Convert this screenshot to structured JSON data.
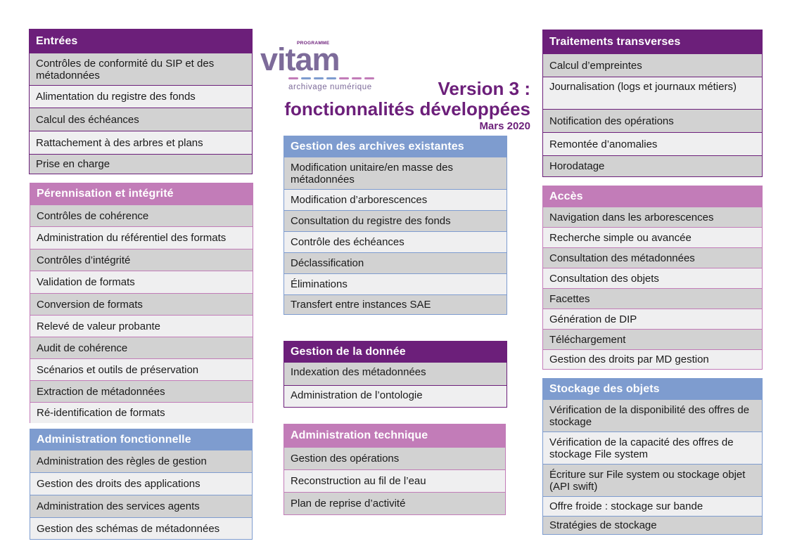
{
  "title": {
    "line1": "Version 3 :",
    "line2": "fonctionnalités développées",
    "date": "Mars 2020"
  },
  "logo": {
    "program": "PROGRAMME",
    "word": "vitam",
    "tagline": "archivage numérique"
  },
  "colors": {
    "purple": "#6c1f7a",
    "pink": "#c27cb8",
    "blue": "#7e9ccf",
    "row_grey": "#d2d2d2",
    "row_light": "#efeff0"
  },
  "entrees": {
    "title": "Entrées",
    "items": [
      "Contrôles de conformité du SIP et des métadonnées",
      "Alimentation du registre des fonds",
      "Calcul des échéances",
      "Rattachement à des arbres et plans",
      "Prise en charge"
    ]
  },
  "perennisation": {
    "title": "Pérennisation et intégrité",
    "items": [
      "Contrôles de cohérence",
      "Administration du référentiel des formats",
      "Contrôles d’intégrité",
      "Validation de formats",
      "Conversion de formats",
      "Relevé de valeur probante",
      "Audit de cohérence",
      "Scénarios et outils de préservation",
      "Extraction de métadonnées",
      "Ré-identification de formats"
    ]
  },
  "admin_fonctionnelle": {
    "title": "Administration fonctionnelle",
    "items": [
      "Administration des règles de gestion",
      "Gestion des droits des applications",
      "Administration des services agents",
      "Gestion des schémas de métadonnées"
    ]
  },
  "gestion_archives": {
    "title": "Gestion des archives existantes",
    "items": [
      "Modification unitaire/en masse des métadonnées",
      "Modification d’arborescences",
      "Consultation du registre des fonds",
      "Contrôle des échéances",
      "Déclassification",
      "Éliminations",
      "Transfert entre instances SAE"
    ]
  },
  "gestion_donnee": {
    "title": "Gestion de la donnée",
    "items": [
      "Indexation des métadonnées",
      "Administration de l’ontologie"
    ]
  },
  "admin_technique": {
    "title": "Administration technique",
    "items": [
      "Gestion des opérations",
      "Reconstruction au fil de l’eau",
      "Plan de reprise d’activité"
    ]
  },
  "traitements": {
    "title": "Traitements transverses",
    "items": [
      "Calcul d’empreintes",
      "Journalisation (logs et journaux métiers)",
      "Notification des opérations",
      "Remontée d’anomalies",
      "Horodatage"
    ]
  },
  "acces": {
    "title": "Accès",
    "items": [
      "Navigation dans les arborescences",
      "Recherche simple ou avancée",
      "Consultation des métadonnées",
      "Consultation des objets",
      "Facettes",
      "Génération de DIP",
      "Téléchargement",
      "Gestion des droits par MD gestion"
    ]
  },
  "stockage": {
    "title": "Stockage des objets",
    "items": [
      "Vérification de la disponibilité des offres de stockage",
      "Vérification de la capacité des offres de stockage File system",
      "Écriture sur File system ou stockage objet (API swift)",
      "Offre froide : stockage sur bande",
      "Stratégies de stockage"
    ]
  }
}
